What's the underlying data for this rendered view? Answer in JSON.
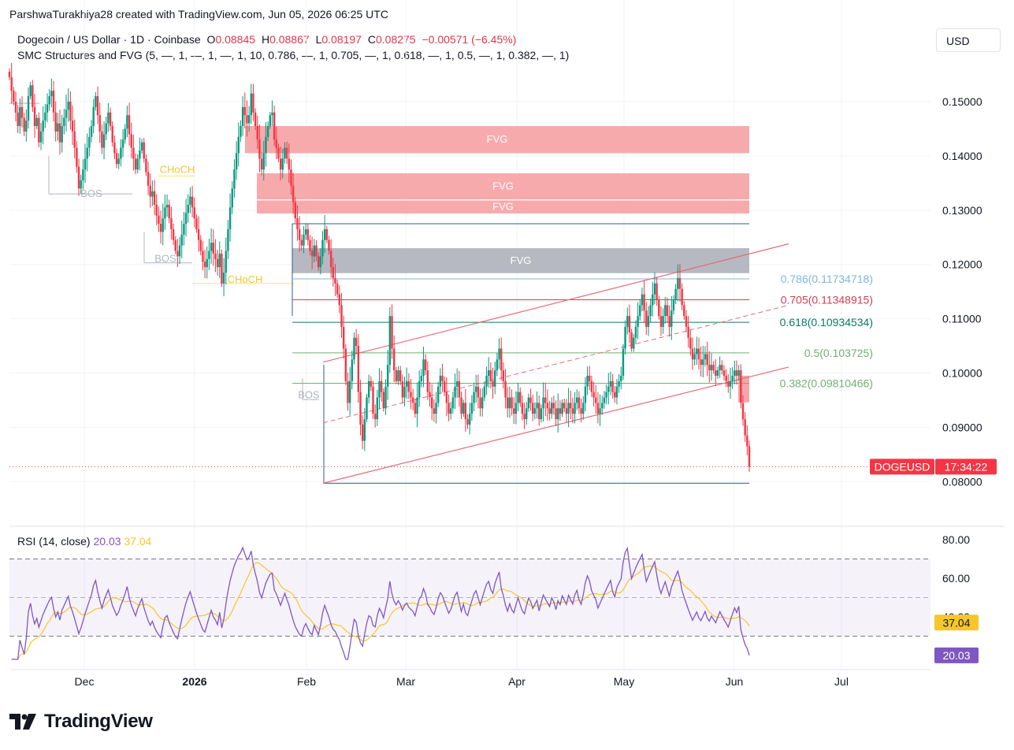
{
  "header": {
    "attribution": "ParshwaTurakhiya28 created with TradingView.com, Jun 05, 2026 06:25 UTC"
  },
  "symbol": {
    "name": "Dogecoin / US Dollar · 1D · Coinbase",
    "o_label": "O",
    "o": "0.08845",
    "h_label": "H",
    "h": "0.08867",
    "l_label": "L",
    "l": "0.08197",
    "c_label": "C",
    "c": "0.08275",
    "change": "−0.00571 (−6.45%)"
  },
  "indicator": {
    "label": "SMC Structures and FVG (5, —, 1, —, 1, —, 1, 10, 0.786, —, 1, 0.705, —, 1, 0.618, —, 1, 0.5, —, 1, 0.382, —, 1)"
  },
  "currency_button": {
    "label": "USD"
  },
  "rsi_legend": {
    "label": "RSI (14, close)",
    "rsi": "20.03",
    "ma": "37.04"
  },
  "brand": {
    "name": "TradingView"
  },
  "colors": {
    "up": "#089981",
    "down": "#f23645",
    "fvg_bear": "#f7a5a8",
    "fvg_neutral": "#b2b5be",
    "rsi": "#7e57c2",
    "rsi_ma": "#f7c62a"
  },
  "chart_data": {
    "type": "candlestick",
    "x_axis": {
      "ticks": [
        "Dec",
        "2026",
        "Feb",
        "Mar",
        "Apr",
        "May",
        "Jun",
        "Jul"
      ]
    },
    "y_axis": {
      "ticks": [
        "0.15000",
        "0.14000",
        "0.13000",
        "0.12000",
        "0.11000",
        "0.10000",
        "0.09000",
        "0.08000"
      ],
      "range": [
        0.0755,
        0.1515
      ]
    },
    "last_price": {
      "symbol": "DOGEUSD",
      "countdown": "17:34:22",
      "value": 0.08275
    },
    "close_series": [
      0.1545,
      0.152,
      0.15,
      0.148,
      0.1455,
      0.149,
      0.147,
      0.1445,
      0.1465,
      0.151,
      0.153,
      0.149,
      0.1455,
      0.147,
      0.1425,
      0.1445,
      0.1465,
      0.148,
      0.1495,
      0.151,
      0.152,
      0.148,
      0.1445,
      0.146,
      0.1425,
      0.1455,
      0.147,
      0.1485,
      0.15,
      0.1465,
      0.1445,
      0.1415,
      0.138,
      0.134,
      0.1355,
      0.1375,
      0.1395,
      0.1415,
      0.1435,
      0.1455,
      0.149,
      0.151,
      0.1475,
      0.1445,
      0.1415,
      0.144,
      0.146,
      0.148,
      0.1455,
      0.1425,
      0.1405,
      0.1385,
      0.1395,
      0.1415,
      0.143,
      0.145,
      0.1475,
      0.144,
      0.1415,
      0.1395,
      0.1375,
      0.1395,
      0.141,
      0.1425,
      0.1395,
      0.137,
      0.1345,
      0.1325,
      0.1335,
      0.131,
      0.129,
      0.1275,
      0.126,
      0.1285,
      0.1305,
      0.131,
      0.1285,
      0.1265,
      0.1245,
      0.1225,
      0.1215,
      0.1235,
      0.1255,
      0.1275,
      0.1295,
      0.131,
      0.1325,
      0.1305,
      0.1285,
      0.1265,
      0.1245,
      0.1225,
      0.1205,
      0.1195,
      0.121,
      0.1225,
      0.124,
      0.122,
      0.121,
      0.1195,
      0.122,
      0.1165,
      0.1185,
      0.1225,
      0.1265,
      0.1305,
      0.134,
      0.1375,
      0.1405,
      0.1435,
      0.1455,
      0.149,
      0.1475,
      0.146,
      0.1475,
      0.1515,
      0.148,
      0.1455,
      0.143,
      0.1395,
      0.1375,
      0.1405,
      0.1435,
      0.1455,
      0.1475,
      0.148,
      0.143,
      0.1415,
      0.1395,
      0.1375,
      0.1395,
      0.1415,
      0.1395,
      0.1375,
      0.1345,
      0.1315,
      0.1285,
      0.1265,
      0.1245,
      0.1235,
      0.1255,
      0.1265,
      0.1245,
      0.1225,
      0.1215,
      0.1235,
      0.1215,
      0.1195,
      0.1215,
      0.1245,
      0.1265,
      0.1245,
      0.1225,
      0.1195,
      0.1175,
      0.1165,
      0.1145,
      0.1125,
      0.1085,
      0.1045,
      0.0985,
      0.0945,
      0.0985,
      0.1025,
      0.1065,
      0.105,
      0.0965,
      0.0905,
      0.0875,
      0.0915,
      0.0955,
      0.0985,
      0.0975,
      0.0925,
      0.0915,
      0.0955,
      0.0985,
      0.0965,
      0.0935,
      0.0975,
      0.1015,
      0.1105,
      0.1045,
      0.1005,
      0.0985,
      0.1005,
      0.0985,
      0.0955,
      0.0975,
      0.0985,
      0.0965,
      0.0955,
      0.0945,
      0.0925,
      0.0955,
      0.0985,
      0.0995,
      0.1025,
      0.1005,
      0.0965,
      0.0955,
      0.0935,
      0.0925,
      0.0945,
      0.0975,
      0.0995,
      0.0985,
      0.0965,
      0.0945,
      0.0925,
      0.0935,
      0.0955,
      0.0975,
      0.0985,
      0.0955,
      0.0925,
      0.0945,
      0.0915,
      0.0905,
      0.0925,
      0.0945,
      0.0965,
      0.0975,
      0.0955,
      0.0935,
      0.0955,
      0.0975,
      0.0995,
      0.1005,
      0.0985,
      0.0975,
      0.1005,
      0.1025,
      0.1045,
      0.1005,
      0.0985,
      0.0955,
      0.0935,
      0.0955,
      0.0935,
      0.0925,
      0.0945,
      0.0965,
      0.0945,
      0.0925,
      0.0915,
      0.0935,
      0.0955,
      0.0945,
      0.0925,
      0.0935,
      0.0945,
      0.0915,
      0.0935,
      0.0955,
      0.0945,
      0.0935,
      0.0925,
      0.0945,
      0.0935,
      0.0915,
      0.0935,
      0.0925,
      0.0945,
      0.0935,
      0.0925,
      0.0945,
      0.0935,
      0.0925,
      0.0945,
      0.0955,
      0.0935,
      0.0925,
      0.0945,
      0.0975,
      0.0995,
      0.0985,
      0.0965,
      0.0955,
      0.0945,
      0.0925,
      0.0935,
      0.0945,
      0.0955,
      0.0965,
      0.0975,
      0.0985,
      0.0965,
      0.0955,
      0.0975,
      0.0985,
      0.0995,
      0.1045,
      0.1085,
      0.1105,
      0.1075,
      0.1045,
      0.1065,
      0.1085,
      0.1105,
      0.1125,
      0.1145,
      0.1115,
      0.1085,
      0.1105,
      0.1125,
      0.1145,
      0.1165,
      0.1135,
      0.1105,
      0.1085,
      0.1105,
      0.1125,
      0.1105,
      0.1085,
      0.1115,
      0.1135,
      0.1155,
      0.1175,
      0.1155,
      0.1125,
      0.1105,
      0.1085,
      0.1065,
      0.1045,
      0.1025,
      0.1035,
      0.1045,
      0.1025,
      0.1015,
      0.1025,
      0.1035,
      0.1015,
      0.1005,
      0.1015,
      0.1005,
      0.0995,
      0.1005,
      0.1015,
      0.1005,
      0.0995,
      0.0985,
      0.0975,
      0.0985,
      0.0995,
      0.1005,
      0.0995,
      0.1005,
      0.0945,
      0.0915,
      0.0885,
      0.0865,
      0.08275
    ],
    "fvg_zones": [
      {
        "label": "FVG",
        "top": 0.1455,
        "bottom": 0.1405,
        "kind": "bearish"
      },
      {
        "label": "FVG",
        "top": 0.1368,
        "bottom": 0.132,
        "kind": "bearish"
      },
      {
        "label": "FVG",
        "top": 0.1318,
        "bottom": 0.1294,
        "kind": "bearish"
      },
      {
        "label": "FVG",
        "top": 0.123,
        "bottom": 0.1184,
        "kind": "neutral"
      }
    ],
    "fib_levels": [
      {
        "label": "0.786(0.11734718)",
        "value": 0.11734718,
        "color": "#7fb6e0"
      },
      {
        "label": "0.705(0.11348915)",
        "value": 0.11348915,
        "color": "#d23f53"
      },
      {
        "label": "0.618(0.10934534)",
        "value": 0.10934534,
        "color": "#0c7a5f"
      },
      {
        "label": "0.5(0.103725)",
        "value": 0.103725,
        "color": "#6fb26f"
      },
      {
        "label": "0.382(0.09810466)",
        "value": 0.09810466,
        "color": "#6fb26f"
      }
    ],
    "structure_labels": [
      {
        "label": "BOS"
      },
      {
        "label": "CHoCH"
      },
      {
        "label": "BOS"
      },
      {
        "label": "CHoCH"
      },
      {
        "label": "BOS"
      }
    ],
    "rsi": {
      "y_ticks": [
        "80.00",
        "60.00",
        "40.00"
      ],
      "range": [
        15,
        82
      ],
      "levels": [
        70,
        50,
        30
      ],
      "current": 20.03,
      "ma_current": 37.04
    }
  }
}
